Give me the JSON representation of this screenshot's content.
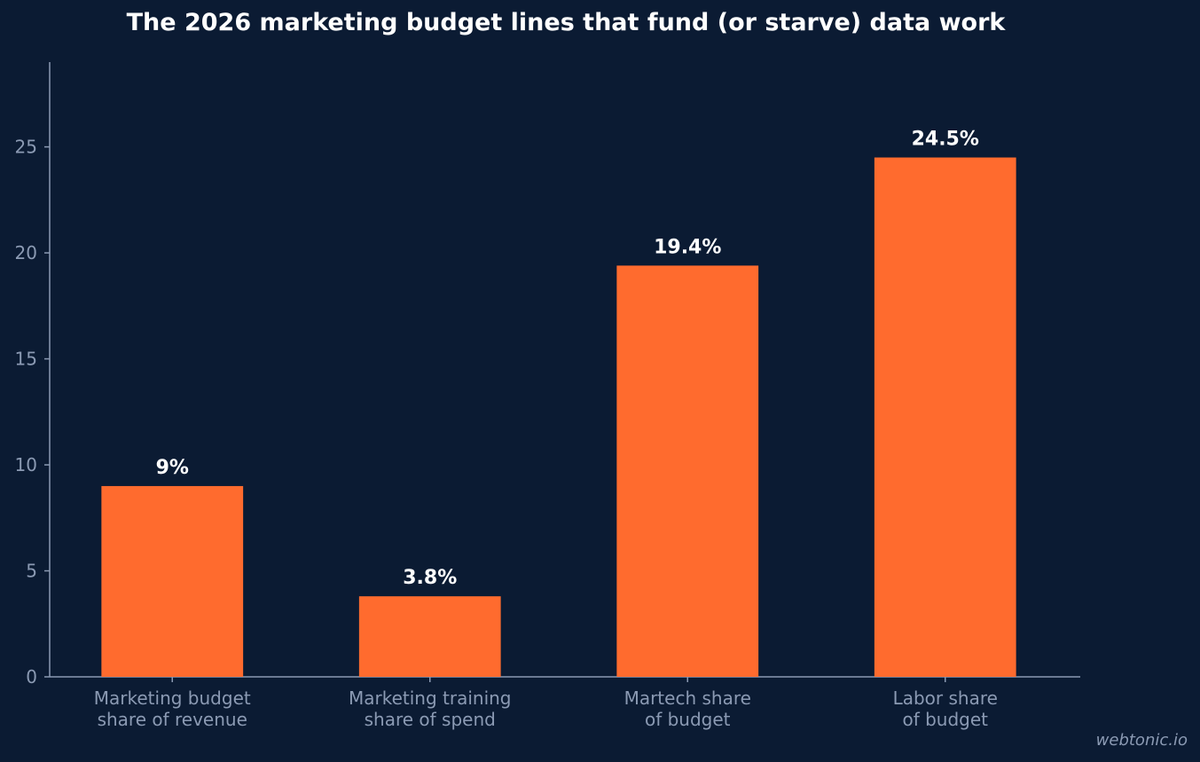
{
  "colors": {
    "background": "#0b1b33",
    "bar": "#ff6b2e",
    "axis": "#8b9ab3",
    "tick_label": "#8b9ab3",
    "data_label": "#ffffff",
    "title": "#ffffff"
  },
  "watermark": "webtonic.io",
  "chart_data": {
    "type": "bar",
    "title": "The 2026 marketing budget lines that fund (or starve) data work",
    "xlabel": "",
    "ylabel": "",
    "ylim": [
      0,
      29
    ],
    "yticks": [
      0,
      5,
      10,
      15,
      20,
      25
    ],
    "grid": false,
    "categories": [
      [
        "Marketing budget",
        "share of revenue"
      ],
      [
        "Marketing training",
        "share of spend"
      ],
      [
        "Martech share",
        "of budget"
      ],
      [
        "Labor share",
        "of budget"
      ]
    ],
    "values": [
      9,
      3.8,
      19.4,
      24.5
    ],
    "data_labels": [
      "9%",
      "3.8%",
      "19.4%",
      "24.5%"
    ]
  }
}
